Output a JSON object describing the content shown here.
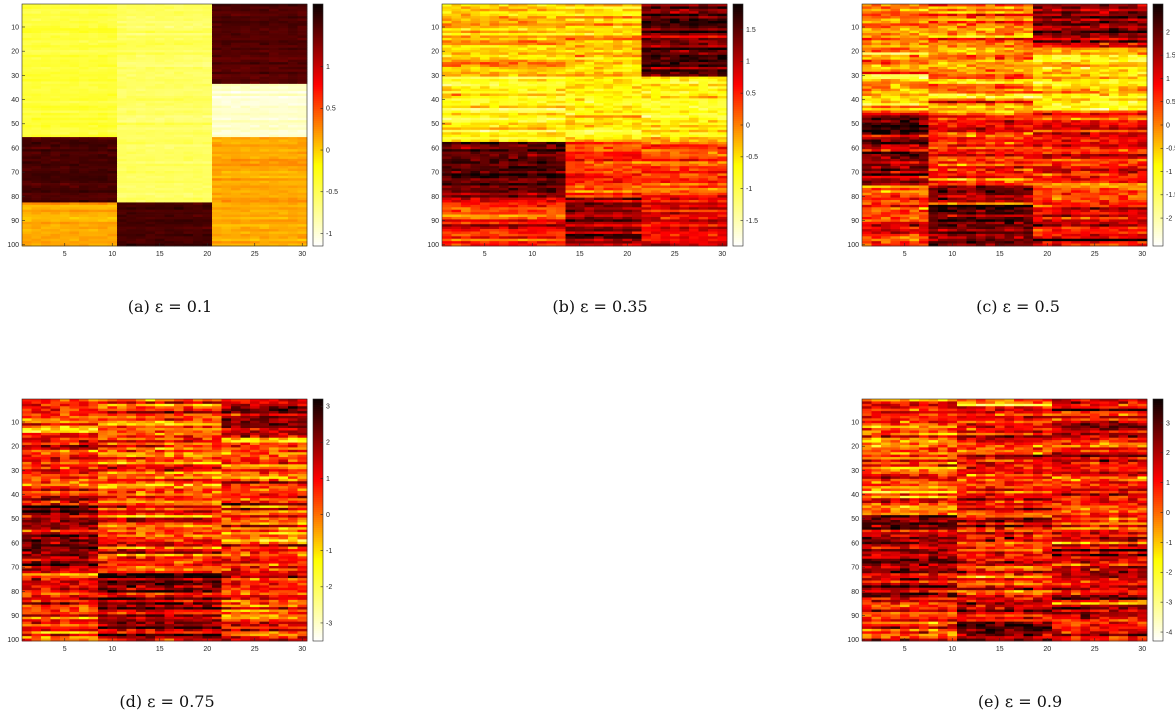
{
  "chart_data": [
    {
      "type": "heatmap",
      "caption": "(a) ε = 0.1",
      "rows": 100,
      "cols": 30,
      "ylim": [
        1,
        100
      ],
      "xlim": [
        1,
        30
      ],
      "x_ticks": [
        5,
        10,
        15,
        20,
        25,
        30
      ],
      "y_ticks": [
        10,
        20,
        30,
        40,
        50,
        60,
        70,
        80,
        90,
        100
      ],
      "colorbar_range": [
        -1.15,
        1.75
      ],
      "colorbar_ticks": [
        -1,
        -0.5,
        0,
        0.5,
        1
      ],
      "row_boundaries": [
        0,
        33,
        55,
        82,
        100
      ],
      "col_boundaries": [
        0,
        10,
        20,
        30
      ],
      "block_means": [
        [
          -0.4,
          -0.55,
          1.45
        ],
        [
          -0.4,
          -0.55,
          -0.95
        ],
        [
          1.5,
          -0.55,
          0.15
        ],
        [
          0.15,
          1.5,
          0.15
        ]
      ],
      "noise_sd": 0.06
    },
    {
      "type": "heatmap",
      "caption": "(b) ε = 0.35",
      "rows": 100,
      "cols": 30,
      "ylim": [
        1,
        100
      ],
      "xlim": [
        1,
        30
      ],
      "x_ticks": [
        5,
        10,
        15,
        20,
        25,
        30
      ],
      "y_ticks": [
        10,
        20,
        30,
        40,
        50,
        60,
        70,
        80,
        90,
        100
      ],
      "colorbar_range": [
        -1.9,
        1.9
      ],
      "colorbar_ticks": [
        -1.5,
        -1,
        -0.5,
        0,
        0.5,
        1,
        1.5
      ],
      "row_boundaries": [
        0,
        30,
        57,
        80,
        100
      ],
      "col_boundaries": [
        0,
        13,
        21,
        30
      ],
      "block_means": [
        [
          -0.3,
          -0.3,
          1.4
        ],
        [
          -0.6,
          -0.6,
          -0.7
        ],
        [
          1.4,
          0.3,
          0.3
        ],
        [
          0.4,
          1.2,
          0.7
        ]
      ],
      "noise_sd": 0.3
    },
    {
      "type": "heatmap",
      "caption": "(c) ε = 0.5",
      "rows": 100,
      "cols": 30,
      "ylim": [
        1,
        100
      ],
      "xlim": [
        1,
        30
      ],
      "x_ticks": [
        5,
        10,
        15,
        20,
        25,
        30
      ],
      "y_ticks": [
        10,
        20,
        30,
        40,
        50,
        60,
        70,
        80,
        90,
        100
      ],
      "colorbar_range": [
        -2.6,
        2.6
      ],
      "colorbar_ticks": [
        -2,
        -1.5,
        -1,
        -0.5,
        0,
        0.5,
        1,
        1.5,
        2
      ],
      "row_boundaries": [
        0,
        18,
        45,
        75,
        100
      ],
      "col_boundaries": [
        0,
        7,
        18,
        30
      ],
      "block_means": [
        [
          0.1,
          0.1,
          1.9
        ],
        [
          -0.3,
          -0.3,
          -0.6
        ],
        [
          1.7,
          0.6,
          0.9
        ],
        [
          0.5,
          1.8,
          0.6
        ]
      ],
      "noise_sd": 0.6
    },
    {
      "type": "heatmap",
      "caption": "(d) ε = 0.75",
      "rows": 100,
      "cols": 30,
      "ylim": [
        1,
        100
      ],
      "xlim": [
        1,
        30
      ],
      "x_ticks": [
        5,
        10,
        15,
        20,
        25,
        30
      ],
      "y_ticks": [
        10,
        20,
        30,
        40,
        50,
        60,
        70,
        80,
        90,
        100
      ],
      "colorbar_range": [
        -3.5,
        3.2
      ],
      "colorbar_ticks": [
        -3,
        -2,
        -1,
        0,
        1,
        2,
        3
      ],
      "row_boundaries": [
        0,
        15,
        40,
        72,
        100
      ],
      "col_boundaries": [
        0,
        8,
        21,
        30
      ],
      "block_means": [
        [
          0.3,
          0.4,
          2.0
        ],
        [
          0.6,
          0.3,
          0.3
        ],
        [
          1.8,
          0.9,
          0.6
        ],
        [
          0.9,
          1.8,
          0.7
        ]
      ],
      "noise_sd": 0.9
    },
    {
      "type": "heatmap",
      "caption": "(e) ε = 0.9",
      "rows": 100,
      "cols": 30,
      "ylim": [
        1,
        100
      ],
      "xlim": [
        1,
        30
      ],
      "x_ticks": [
        5,
        10,
        15,
        20,
        25,
        30
      ],
      "y_ticks": [
        10,
        20,
        30,
        40,
        50,
        60,
        70,
        80,
        90,
        100
      ],
      "colorbar_range": [
        -4.3,
        3.8
      ],
      "colorbar_ticks": [
        -4,
        -3,
        -2,
        -1,
        0,
        1,
        2,
        3
      ],
      "row_boundaries": [
        0,
        15,
        48,
        82,
        100
      ],
      "col_boundaries": [
        0,
        10,
        20,
        30
      ],
      "block_means": [
        [
          0.6,
          0.6,
          1.3
        ],
        [
          0.2,
          1.0,
          0.9
        ],
        [
          2.0,
          1.0,
          1.1
        ],
        [
          0.6,
          2.0,
          1.2
        ]
      ],
      "noise_sd": 1.1
    }
  ]
}
